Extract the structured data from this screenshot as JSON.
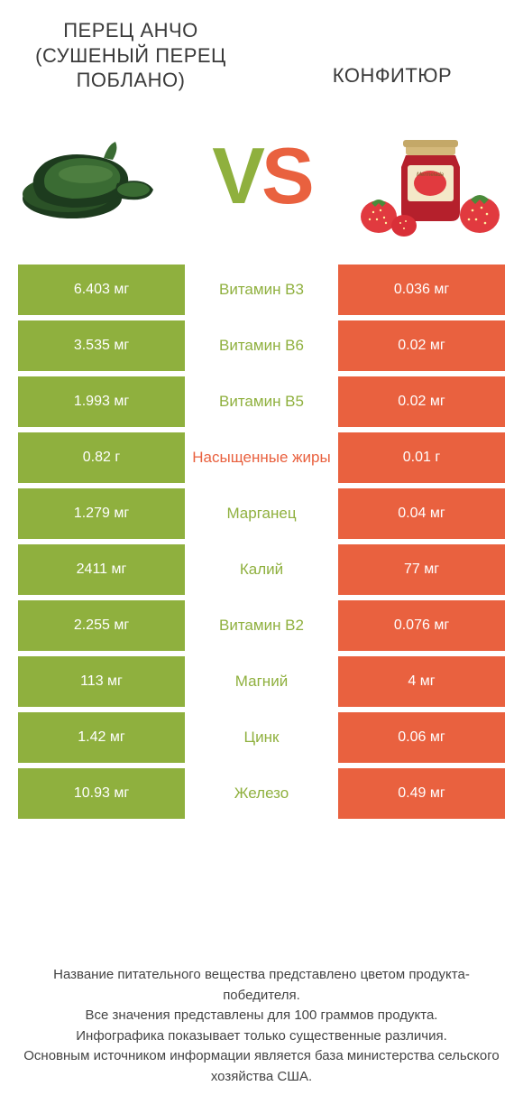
{
  "colors": {
    "left": "#8fb03e",
    "right": "#e9613f",
    "vs_left": "#8fb03e",
    "vs_right": "#e9613f",
    "text": "#3a3a3a",
    "white": "#ffffff",
    "pepper_dark": "#1d3b1e",
    "pepper_light": "#3a6b33",
    "jam_red": "#b5202c",
    "jam_lid": "#d4b87a",
    "strawberry": "#e13a3f",
    "strawberry_leaf": "#4a8b3a"
  },
  "header": {
    "left_title": "ПЕРЕЦ АНЧО (СУШЕНЫЙ ПЕРЕЦ ПОБЛАНО)",
    "right_title": "КОНФИТЮР",
    "vs": {
      "v": "V",
      "s": "S"
    }
  },
  "rows": [
    {
      "left": "6.403 мг",
      "name": "Витамин B3",
      "right": "0.036 мг",
      "winner": "left"
    },
    {
      "left": "3.535 мг",
      "name": "Витамин B6",
      "right": "0.02 мг",
      "winner": "left"
    },
    {
      "left": "1.993 мг",
      "name": "Витамин B5",
      "right": "0.02 мг",
      "winner": "left"
    },
    {
      "left": "0.82 г",
      "name": "Насыщенные жиры",
      "right": "0.01 г",
      "winner": "right"
    },
    {
      "left": "1.279 мг",
      "name": "Марганец",
      "right": "0.04 мг",
      "winner": "left"
    },
    {
      "left": "2411 мг",
      "name": "Калий",
      "right": "77 мг",
      "winner": "left"
    },
    {
      "left": "2.255 мг",
      "name": "Витамин B2",
      "right": "0.076 мг",
      "winner": "left"
    },
    {
      "left": "113 мг",
      "name": "Магний",
      "right": "4 мг",
      "winner": "left"
    },
    {
      "left": "1.42 мг",
      "name": "Цинк",
      "right": "0.06 мг",
      "winner": "left"
    },
    {
      "left": "10.93 мг",
      "name": "Железо",
      "right": "0.49 мг",
      "winner": "left"
    }
  ],
  "footer": {
    "l1": "Название питательного вещества представлено цветом продукта-победителя.",
    "l2": "Все значения представлены для 100 граммов продукта.",
    "l3": "Инфографика показывает только существенные различия.",
    "l4": "Основным источником информации является база министерства сельского хозяйства США."
  }
}
